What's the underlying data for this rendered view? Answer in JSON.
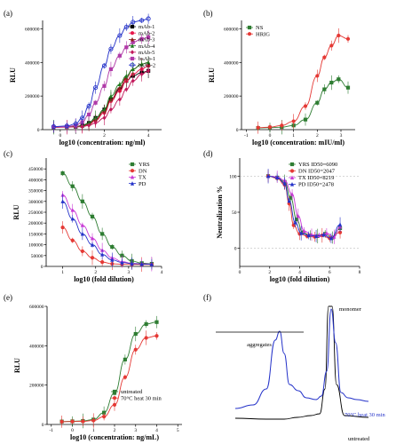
{
  "figure": {
    "panel_labels": [
      "(a)",
      "(b)",
      "(c)",
      "(d)",
      "(e)",
      "(f)"
    ]
  },
  "chart_data": [
    {
      "id": "a",
      "type": "line",
      "xlabel": "log10 (concentration: ng/ml)",
      "ylabel": "RLU",
      "xlim": [
        -0.8,
        4.6
      ],
      "ylim": [
        0,
        650000
      ],
      "xticks": [
        0,
        2,
        4
      ],
      "xtick_labels": [
        "0",
        "2",
        "4"
      ],
      "yticks": [
        0,
        200000,
        400000,
        600000
      ],
      "ytick_labels": [
        "0",
        "200000",
        "400000",
        "600000"
      ],
      "legend": {
        "position": "top-right"
      },
      "series": [
        {
          "name": "mAb-1",
          "color": "#000000",
          "marker": "square",
          "x": [
            -0.3,
            0.3,
            0.7,
            1.0,
            1.3,
            1.6,
            2.0,
            2.3,
            2.7,
            3.0,
            3.3,
            3.7,
            4.0
          ],
          "y": [
            15000,
            16000,
            18000,
            25000,
            40000,
            70000,
            120000,
            180000,
            240000,
            290000,
            320000,
            340000,
            350000
          ]
        },
        {
          "name": "mAb-2",
          "color": "#e8174c",
          "marker": "circle",
          "x": [
            -0.3,
            0.3,
            0.7,
            1.0,
            1.3,
            1.6,
            2.0,
            2.3,
            2.7,
            3.0,
            3.3,
            3.7,
            4.0
          ],
          "y": [
            15000,
            16000,
            17000,
            20000,
            30000,
            55000,
            100000,
            170000,
            230000,
            290000,
            330000,
            360000,
            380000
          ]
        },
        {
          "name": "mAb-3",
          "color": "#8b1a1a",
          "marker": "triangle",
          "x": [
            -0.3,
            0.3,
            0.7,
            1.0,
            1.3,
            1.6,
            2.0,
            2.3,
            2.7,
            3.0,
            3.3,
            3.7,
            4.0
          ],
          "y": [
            15000,
            16000,
            18000,
            22000,
            35000,
            60000,
            110000,
            180000,
            250000,
            310000,
            360000,
            390000,
            400000
          ]
        },
        {
          "name": "mAb-4",
          "color": "#1f7a1f",
          "marker": "triangle",
          "x": [
            -0.3,
            0.3,
            0.7,
            1.0,
            1.3,
            1.6,
            2.0,
            2.3,
            2.7,
            3.0,
            3.3,
            3.7,
            4.0
          ],
          "y": [
            15000,
            16000,
            18000,
            22000,
            40000,
            70000,
            120000,
            200000,
            270000,
            320000,
            360000,
            390000,
            400000
          ]
        },
        {
          "name": "mAb-5",
          "color": "#c2185b",
          "marker": "diamond",
          "x": [
            -0.3,
            0.3,
            0.7,
            1.0,
            1.3,
            1.6,
            2.0,
            2.3,
            2.7,
            3.0,
            3.3,
            3.7,
            4.0
          ],
          "y": [
            14000,
            15000,
            16000,
            18000,
            25000,
            40000,
            70000,
            120000,
            180000,
            240000,
            290000,
            330000,
            350000
          ]
        },
        {
          "name": "bsAb-1",
          "color": "#b03aa8",
          "marker": "square",
          "x": [
            -0.3,
            0.3,
            0.7,
            1.0,
            1.3,
            1.6,
            2.0,
            2.3,
            2.7,
            3.0,
            3.3,
            3.7,
            4.0
          ],
          "y": [
            16000,
            18000,
            25000,
            45000,
            90000,
            160000,
            260000,
            360000,
            440000,
            490000,
            520000,
            540000,
            550000
          ]
        },
        {
          "name": "bsAb-2",
          "color": "#2432c9",
          "marker": "circle-open",
          "x": [
            -0.3,
            0.3,
            0.7,
            1.0,
            1.3,
            1.6,
            2.0,
            2.3,
            2.7,
            3.0,
            3.3,
            3.7,
            4.0
          ],
          "y": [
            18000,
            22000,
            35000,
            70000,
            140000,
            250000,
            380000,
            480000,
            560000,
            610000,
            640000,
            650000,
            660000
          ]
        }
      ]
    },
    {
      "id": "b",
      "type": "line",
      "xlabel": "log10 (concentration: mIU/ml)",
      "ylabel": "RLU",
      "xlim": [
        -1.2,
        3.6
      ],
      "ylim": [
        0,
        650000
      ],
      "xticks": [
        -1,
        0,
        1,
        2,
        3
      ],
      "xtick_labels": [
        "-1",
        "0",
        "1",
        "2",
        "3"
      ],
      "yticks": [
        0,
        200000,
        400000,
        600000
      ],
      "ytick_labels": [
        "0",
        "200000",
        "400000",
        "600000"
      ],
      "legend": {
        "position": "top-left"
      },
      "series": [
        {
          "name": "NS",
          "color": "#2e7d32",
          "marker": "square",
          "x": [
            -0.5,
            0.0,
            0.5,
            1.0,
            1.5,
            2.0,
            2.3,
            2.6,
            2.9,
            3.3
          ],
          "y": [
            10000,
            12000,
            15000,
            25000,
            60000,
            160000,
            240000,
            280000,
            300000,
            250000
          ]
        },
        {
          "name": "HRIG",
          "color": "#e53935",
          "marker": "circle",
          "x": [
            -0.5,
            0.0,
            0.5,
            1.0,
            1.5,
            2.0,
            2.3,
            2.6,
            2.9,
            3.3
          ],
          "y": [
            12000,
            15000,
            25000,
            50000,
            140000,
            320000,
            430000,
            500000,
            560000,
            540000
          ]
        }
      ]
    },
    {
      "id": "c",
      "type": "line",
      "xlabel": "log10 (fold dilution)",
      "ylabel": "RLU",
      "xlim": [
        0.5,
        4.0
      ],
      "ylim": [
        0,
        500000
      ],
      "xticks": [
        1,
        2,
        3,
        4
      ],
      "xtick_labels": [
        "1",
        "2",
        "3",
        "4"
      ],
      "yticks": [
        0,
        50000,
        100000,
        150000,
        200000,
        250000,
        300000,
        350000,
        400000,
        450000
      ],
      "ytick_labels": [
        "0",
        "50000",
        "100000",
        "150000",
        "200000",
        "250000",
        "300000",
        "350000",
        "400000",
        "450000"
      ],
      "legend": {
        "position": "top-right"
      },
      "series": [
        {
          "name": "YRS",
          "color": "#2e7d32",
          "marker": "square",
          "x": [
            1.0,
            1.3,
            1.6,
            1.9,
            2.2,
            2.5,
            2.8,
            3.1,
            3.4,
            3.7
          ],
          "y": [
            430000,
            370000,
            300000,
            230000,
            150000,
            90000,
            50000,
            25000,
            15000,
            12000
          ]
        },
        {
          "name": "DN",
          "color": "#e53935",
          "marker": "circle",
          "x": [
            1.0,
            1.3,
            1.6,
            1.9,
            2.2,
            2.5,
            2.8,
            3.1,
            3.4,
            3.7
          ],
          "y": [
            180000,
            120000,
            70000,
            40000,
            20000,
            12000,
            10000,
            9000,
            9000,
            9000
          ]
        },
        {
          "name": "TX",
          "color": "#c93ad6",
          "marker": "triangle",
          "x": [
            1.0,
            1.3,
            1.6,
            1.9,
            2.2,
            2.5,
            2.8,
            3.1,
            3.4,
            3.7
          ],
          "y": [
            330000,
            260000,
            190000,
            130000,
            75000,
            40000,
            22000,
            14000,
            12000,
            11000
          ]
        },
        {
          "name": "PD",
          "color": "#2432c9",
          "marker": "triangle",
          "x": [
            1.0,
            1.3,
            1.6,
            1.9,
            2.2,
            2.5,
            2.8,
            3.1,
            3.4,
            3.7
          ],
          "y": [
            300000,
            220000,
            150000,
            100000,
            55000,
            30000,
            18000,
            13000,
            11000,
            10000
          ]
        }
      ]
    },
    {
      "id": "d",
      "type": "line",
      "xlabel": "log10 (fold dilution)",
      "ylabel": "Neutralization %",
      "xlim": [
        0,
        8
      ],
      "ylim": [
        -25,
        125
      ],
      "xticks": [
        0,
        2,
        4,
        6,
        8
      ],
      "xtick_labels": [
        "0",
        "2",
        "4",
        "6",
        "8"
      ],
      "yticks": [
        0,
        50,
        100
      ],
      "ytick_labels": [
        "0",
        "50",
        "100"
      ],
      "legend": {
        "position": "top-right",
        "labels": [
          "YRS ID50=6090",
          "DN ID50=2047",
          "TX ID50=8219",
          "PD ID50=2478"
        ]
      },
      "series": [
        {
          "name": "YRS",
          "color": "#2e7d32",
          "marker": "square",
          "x": [
            1.9,
            2.5,
            3.0,
            3.4,
            3.8,
            4.2,
            4.7,
            5.2,
            5.7,
            6.2,
            6.7
          ],
          "y": [
            100,
            98,
            92,
            70,
            40,
            22,
            18,
            17,
            20,
            15,
            28
          ]
        },
        {
          "name": "DN",
          "color": "#e53935",
          "marker": "circle",
          "x": [
            1.9,
            2.5,
            3.0,
            3.3,
            3.6,
            4.0,
            4.5,
            5.0,
            5.5,
            6.0,
            6.7
          ],
          "y": [
            100,
            97,
            88,
            62,
            32,
            20,
            17,
            16,
            18,
            14,
            22
          ]
        },
        {
          "name": "TX",
          "color": "#c93ad6",
          "marker": "triangle",
          "x": [
            1.9,
            2.5,
            3.0,
            3.5,
            3.9,
            4.3,
            4.8,
            5.3,
            5.8,
            6.3,
            6.7
          ],
          "y": [
            100,
            99,
            94,
            75,
            45,
            24,
            19,
            18,
            21,
            16,
            30
          ]
        },
        {
          "name": "PD",
          "color": "#2432c9",
          "marker": "triangle",
          "x": [
            1.9,
            2.5,
            3.0,
            3.3,
            3.7,
            4.1,
            4.6,
            5.1,
            5.6,
            6.1,
            6.7
          ],
          "y": [
            100,
            98,
            90,
            66,
            36,
            21,
            18,
            17,
            19,
            14,
            33
          ]
        }
      ]
    },
    {
      "id": "e",
      "type": "line",
      "xlabel": "log10 (concentration: ng/mL)",
      "ylabel": "RLU",
      "xlim": [
        -1.2,
        5.2
      ],
      "ylim": [
        0,
        600000
      ],
      "xticks": [
        -1,
        0,
        1,
        2,
        3,
        4,
        5
      ],
      "xtick_labels": [
        "-1",
        "0",
        "1",
        "2",
        "3",
        "4",
        "5"
      ],
      "yticks": [
        0,
        200000,
        400000,
        600000
      ],
      "ytick_labels": [
        "0",
        "200000",
        "400000",
        "600000"
      ],
      "legend": {
        "position": "lower-right",
        "labels": [
          "untreated",
          "70°C heat 30 min"
        ]
      },
      "series": [
        {
          "name": "untreated",
          "color": "#2e7d32",
          "marker": "square",
          "x": [
            -0.5,
            0.0,
            0.5,
            1.0,
            1.5,
            2.0,
            2.5,
            3.0,
            3.5,
            4.0
          ],
          "y": [
            15000,
            16000,
            18000,
            25000,
            60000,
            160000,
            330000,
            460000,
            510000,
            520000
          ]
        },
        {
          "name": "70°C heat 30 min",
          "color": "#e53935",
          "marker": "circle",
          "x": [
            -0.5,
            0.0,
            0.5,
            1.0,
            1.5,
            2.0,
            2.5,
            3.0,
            3.5,
            4.0
          ],
          "y": [
            14000,
            15000,
            16000,
            20000,
            40000,
            100000,
            240000,
            380000,
            440000,
            450000
          ]
        }
      ]
    },
    {
      "id": "f",
      "type": "line",
      "annotations": [
        "aggregates",
        "monomer"
      ],
      "legend": {
        "labels": [
          "70°C heat 30 min",
          "untreated"
        ]
      },
      "series": [
        {
          "name": "70°C heat 30 min",
          "color": "#2432c9"
        },
        {
          "name": "untreated",
          "color": "#000000"
        }
      ]
    }
  ]
}
